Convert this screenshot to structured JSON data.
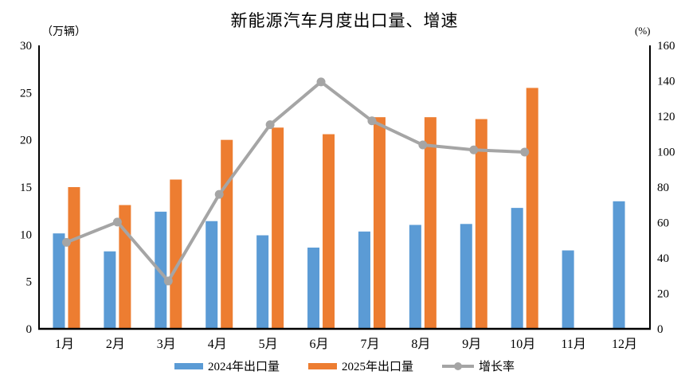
{
  "title": "新能源汽车月度出口量、增速",
  "axis_left_unit": "（万辆）",
  "axis_right_unit": "(%)",
  "colors": {
    "bar_2024": "#5B9BD5",
    "bar_2025": "#ED7D31",
    "growth_line": "#A5A5A5",
    "axis": "#000000",
    "background": "#FFFFFF",
    "text": "#000000"
  },
  "legend": {
    "items": [
      {
        "label": "2024年出口量",
        "marker": "bar",
        "color": "#5B9BD5"
      },
      {
        "label": "2025年出口量",
        "marker": "bar",
        "color": "#ED7D31"
      },
      {
        "label": "增长率",
        "marker": "line-dot",
        "color": "#A5A5A5"
      }
    ]
  },
  "chart_data": {
    "type": "bar",
    "title": "新能源汽车月度出口量、增速",
    "categories": [
      "1月",
      "2月",
      "3月",
      "4月",
      "5月",
      "6月",
      "7月",
      "8月",
      "9月",
      "10月",
      "11月",
      "12月"
    ],
    "series": [
      {
        "name": "2024年出口量",
        "kind": "bar",
        "axis": "left",
        "color": "#5B9BD5",
        "values": [
          10.1,
          8.2,
          12.4,
          11.4,
          9.9,
          8.6,
          10.3,
          11.0,
          11.1,
          12.8,
          8.3,
          13.5
        ]
      },
      {
        "name": "2025年出口量",
        "kind": "bar",
        "axis": "left",
        "color": "#ED7D31",
        "values": [
          15.0,
          13.1,
          15.8,
          20.0,
          21.3,
          20.6,
          22.4,
          22.4,
          22.2,
          25.5,
          null,
          null
        ]
      },
      {
        "name": "增长率",
        "kind": "line",
        "axis": "right",
        "color": "#A5A5A5",
        "values": [
          48.8,
          60.3,
          27.0,
          75.9,
          115.2,
          139.4,
          117.4,
          103.8,
          101.0,
          99.8,
          null,
          null
        ]
      }
    ],
    "xlabel": "",
    "ylabel_left": "（万辆）",
    "ylabel_right": "(%)",
    "ylim_left": [
      0,
      30
    ],
    "ylim_right": [
      0,
      160
    ],
    "left_ticks": [
      0,
      5,
      10,
      15,
      20,
      25,
      30
    ],
    "right_ticks": [
      0,
      20,
      40,
      60,
      80,
      100,
      120,
      140,
      160
    ],
    "grid": false,
    "legend_position": "bottom"
  }
}
